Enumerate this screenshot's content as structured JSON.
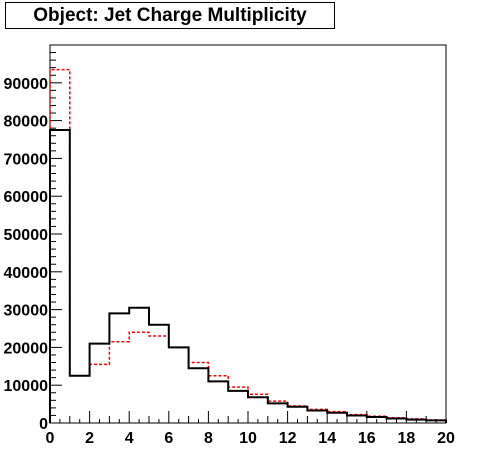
{
  "chart_data": {
    "type": "histogram",
    "title": "Object: Jet Charge Multiplicity",
    "xlabel": "",
    "ylabel": "",
    "xlim": [
      0,
      20
    ],
    "ylim": [
      0,
      100000
    ],
    "bin_edges": [
      0,
      1,
      2,
      3,
      4,
      5,
      6,
      7,
      8,
      9,
      10,
      11,
      12,
      13,
      14,
      15,
      16,
      17,
      18,
      19,
      20
    ],
    "x_ticks": [
      0,
      2,
      4,
      6,
      8,
      10,
      12,
      14,
      16,
      18,
      20
    ],
    "x_tick_labels": [
      "0",
      "2",
      "4",
      "6",
      "8",
      "10",
      "12",
      "14",
      "16",
      "18",
      "20"
    ],
    "y_ticks": [
      0,
      10000,
      20000,
      30000,
      40000,
      50000,
      60000,
      70000,
      80000,
      90000
    ],
    "y_tick_labels": [
      "0",
      "10000",
      "20000",
      "30000",
      "40000",
      "50000",
      "60000",
      "70000",
      "80000",
      "90000"
    ],
    "grid": false,
    "series": [
      {
        "color": "#000000",
        "style": "solid",
        "values": [
          77500,
          12500,
          21000,
          29000,
          30500,
          26000,
          20000,
          14500,
          11000,
          8500,
          6800,
          5200,
          4300,
          3300,
          2700,
          2000,
          1600,
          1200,
          900,
          700
        ]
      },
      {
        "color": "#ff0000",
        "style": "dashed",
        "values": [
          93500,
          12500,
          15500,
          21500,
          24000,
          23000,
          20000,
          16000,
          12500,
          9500,
          7600,
          5800,
          4500,
          3600,
          3000,
          2200,
          1800,
          1400,
          1100,
          800
        ]
      }
    ]
  }
}
